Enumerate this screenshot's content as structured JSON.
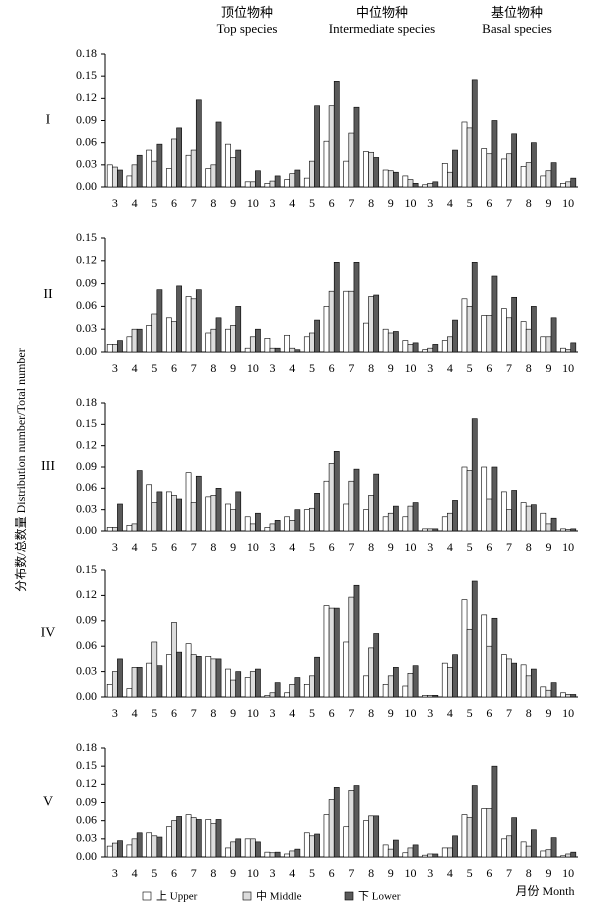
{
  "column_headers": [
    {
      "zh": "顶位物种",
      "en": "Top species"
    },
    {
      "zh": "中位物种",
      "en": "Intermediate species"
    },
    {
      "zh": "基位物种",
      "en": "Basal species"
    }
  ],
  "y_axis_label": "分布数/总数量 Distribution number/Total number",
  "x_axis_label": "月份 Month",
  "chart_data": [
    {
      "type": "bar",
      "panel": "I",
      "categories": [
        "3",
        "4",
        "5",
        "6",
        "7",
        "8",
        "9",
        "10",
        "3",
        "4",
        "5",
        "6",
        "7",
        "8",
        "9",
        "10",
        "3",
        "4",
        "5",
        "6",
        "7",
        "8",
        "9",
        "10"
      ],
      "ylim": [
        0,
        0.18
      ],
      "yticks": [
        {
          "value": 0,
          "label": "0.00"
        },
        0.03,
        0.06,
        0.09,
        0.12,
        0.15,
        0.18
      ],
      "series": [
        {
          "name": "上 Upper",
          "color": "#ffffff",
          "values": [
            0.03,
            0.015,
            0.05,
            0.025,
            0.043,
            0.025,
            0.058,
            0.007,
            0.005,
            0.01,
            0.012,
            0.062,
            0.035,
            0.048,
            0.023,
            0.015,
            0.003,
            0.032,
            0.088,
            0.052,
            0.038,
            0.028,
            0.015,
            0.005
          ]
        },
        {
          "name": "中 Middle",
          "color": "#dcdcdc",
          "values": [
            0.027,
            0.03,
            0.035,
            0.065,
            0.05,
            0.03,
            0.04,
            0.007,
            0.008,
            0.018,
            0.035,
            0.11,
            0.073,
            0.047,
            0.022,
            0.01,
            0.005,
            0.02,
            0.08,
            0.045,
            0.045,
            0.033,
            0.022,
            0.007
          ]
        },
        {
          "name": "下 Lower",
          "color": "#5a5a5a",
          "values": [
            0.023,
            0.043,
            0.058,
            0.08,
            0.118,
            0.088,
            0.05,
            0.022,
            0.015,
            0.023,
            0.11,
            0.143,
            0.108,
            0.04,
            0.02,
            0.005,
            0.007,
            0.05,
            0.145,
            0.09,
            0.072,
            0.06,
            0.033,
            0.012
          ]
        }
      ]
    },
    {
      "type": "bar",
      "panel": "II",
      "categories": [
        "3",
        "4",
        "5",
        "6",
        "7",
        "8",
        "9",
        "10",
        "3",
        "4",
        "5",
        "6",
        "7",
        "8",
        "9",
        "10",
        "3",
        "4",
        "5",
        "6",
        "7",
        "8",
        "9",
        "10"
      ],
      "ylim": [
        0,
        0.15
      ],
      "yticks": [
        {
          "value": 0,
          "label": "0.00"
        },
        0.03,
        0.06,
        0.09,
        0.12,
        0.15
      ],
      "series": [
        {
          "name": "上 Upper",
          "color": "#ffffff",
          "values": [
            0.01,
            0.02,
            0.035,
            0.045,
            0.073,
            0.025,
            0.03,
            0.005,
            0.018,
            0.022,
            0.02,
            0.06,
            0.08,
            0.038,
            0.03,
            0.015,
            0.003,
            0.015,
            0.07,
            0.048,
            0.057,
            0.04,
            0.02,
            0.005
          ]
        },
        {
          "name": "中 Middle",
          "color": "#dcdcdc",
          "values": [
            0.01,
            0.03,
            0.05,
            0.04,
            0.07,
            0.03,
            0.035,
            0.02,
            0.005,
            0.005,
            0.025,
            0.08,
            0.08,
            0.073,
            0.025,
            0.01,
            0.005,
            0.02,
            0.06,
            0.048,
            0.045,
            0.03,
            0.02,
            0.003
          ]
        },
        {
          "name": "下 Lower",
          "color": "#5a5a5a",
          "values": [
            0.015,
            0.03,
            0.082,
            0.087,
            0.082,
            0.045,
            0.06,
            0.03,
            0.005,
            0.003,
            0.042,
            0.118,
            0.118,
            0.075,
            0.027,
            0.012,
            0.01,
            0.042,
            0.118,
            0.1,
            0.072,
            0.06,
            0.045,
            0.012
          ]
        }
      ]
    },
    {
      "type": "bar",
      "panel": "III",
      "categories": [
        "3",
        "4",
        "5",
        "6",
        "7",
        "8",
        "9",
        "10",
        "3",
        "4",
        "5",
        "6",
        "7",
        "8",
        "9",
        "10",
        "3",
        "4",
        "5",
        "6",
        "7",
        "8",
        "9",
        "10"
      ],
      "ylim": [
        0,
        0.18
      ],
      "yticks": [
        {
          "value": 0,
          "label": "0.00"
        },
        0.03,
        0.06,
        0.09,
        0.12,
        0.15,
        0.18
      ],
      "series": [
        {
          "name": "上 Upper",
          "color": "#ffffff",
          "values": [
            0.005,
            0.008,
            0.065,
            0.055,
            0.082,
            0.048,
            0.038,
            0.02,
            0.005,
            0.02,
            0.03,
            0.07,
            0.038,
            0.03,
            0.02,
            0.02,
            0.003,
            0.02,
            0.09,
            0.09,
            0.055,
            0.04,
            0.025,
            0.003
          ]
        },
        {
          "name": "中 Middle",
          "color": "#dcdcdc",
          "values": [
            0.005,
            0.01,
            0.04,
            0.05,
            0.04,
            0.05,
            0.03,
            0.01,
            0.01,
            0.015,
            0.032,
            0.095,
            0.07,
            0.05,
            0.025,
            0.035,
            0.003,
            0.025,
            0.085,
            0.045,
            0.03,
            0.035,
            0.01,
            0.002
          ]
        },
        {
          "name": "下 Lower",
          "color": "#5a5a5a",
          "values": [
            0.038,
            0.085,
            0.055,
            0.045,
            0.077,
            0.06,
            0.055,
            0.025,
            0.015,
            0.03,
            0.053,
            0.112,
            0.087,
            0.08,
            0.035,
            0.04,
            0.003,
            0.043,
            0.158,
            0.09,
            0.057,
            0.037,
            0.018,
            0.003
          ]
        }
      ]
    },
    {
      "type": "bar",
      "panel": "IV",
      "categories": [
        "3",
        "4",
        "5",
        "6",
        "7",
        "8",
        "9",
        "10",
        "3",
        "4",
        "5",
        "6",
        "7",
        "8",
        "9",
        "10",
        "3",
        "4",
        "5",
        "6",
        "7",
        "8",
        "9",
        "10"
      ],
      "ylim": [
        0,
        0.15
      ],
      "yticks": [
        {
          "value": 0,
          "label": "0.00"
        },
        0.03,
        0.06,
        0.09,
        0.12,
        0.15
      ],
      "series": [
        {
          "name": "上 Upper",
          "color": "#ffffff",
          "values": [
            0.015,
            0.01,
            0.04,
            0.05,
            0.063,
            0.048,
            0.033,
            0.023,
            0.002,
            0.005,
            0.015,
            0.108,
            0.065,
            0.025,
            0.015,
            0.013,
            0.002,
            0.04,
            0.115,
            0.097,
            0.05,
            0.038,
            0.012,
            0.005
          ]
        },
        {
          "name": "中 Middle",
          "color": "#dcdcdc",
          "values": [
            0.03,
            0.035,
            0.065,
            0.088,
            0.05,
            0.045,
            0.02,
            0.03,
            0.005,
            0.015,
            0.025,
            0.105,
            0.118,
            0.058,
            0.025,
            0.028,
            0.002,
            0.035,
            0.08,
            0.06,
            0.045,
            0.025,
            0.008,
            0.003
          ]
        },
        {
          "name": "下 Lower",
          "color": "#5a5a5a",
          "values": [
            0.045,
            0.035,
            0.037,
            0.053,
            0.048,
            0.045,
            0.03,
            0.033,
            0.017,
            0.023,
            0.047,
            0.105,
            0.132,
            0.075,
            0.035,
            0.037,
            0.002,
            0.05,
            0.137,
            0.093,
            0.04,
            0.033,
            0.017,
            0.003
          ]
        }
      ]
    },
    {
      "type": "bar",
      "panel": "V",
      "categories": [
        "3",
        "4",
        "5",
        "6",
        "7",
        "8",
        "9",
        "10",
        "3",
        "4",
        "5",
        "6",
        "7",
        "8",
        "9",
        "10",
        "3",
        "4",
        "5",
        "6",
        "7",
        "8",
        "9",
        "10"
      ],
      "ylim": [
        0,
        0.18
      ],
      "yticks": [
        {
          "value": 0,
          "label": "0.00"
        },
        0.03,
        0.06,
        0.09,
        0.12,
        0.15,
        0.18
      ],
      "series": [
        {
          "name": "上 Upper",
          "color": "#ffffff",
          "values": [
            0.018,
            0.02,
            0.04,
            0.05,
            0.07,
            0.062,
            0.015,
            0.03,
            0.008,
            0.005,
            0.04,
            0.07,
            0.05,
            0.06,
            0.02,
            0.007,
            0.003,
            0.015,
            0.07,
            0.08,
            0.03,
            0.025,
            0.01,
            0.002
          ]
        },
        {
          "name": "中 Middle",
          "color": "#dcdcdc",
          "values": [
            0.023,
            0.03,
            0.035,
            0.06,
            0.065,
            0.055,
            0.025,
            0.03,
            0.007,
            0.01,
            0.035,
            0.095,
            0.11,
            0.068,
            0.013,
            0.015,
            0.005,
            0.015,
            0.065,
            0.08,
            0.035,
            0.018,
            0.012,
            0.005
          ]
        },
        {
          "name": "下 Lower",
          "color": "#5a5a5a",
          "values": [
            0.027,
            0.04,
            0.033,
            0.067,
            0.062,
            0.062,
            0.03,
            0.025,
            0.008,
            0.013,
            0.038,
            0.115,
            0.118,
            0.068,
            0.028,
            0.02,
            0.005,
            0.035,
            0.118,
            0.15,
            0.065,
            0.045,
            0.032,
            0.008
          ]
        }
      ]
    }
  ]
}
